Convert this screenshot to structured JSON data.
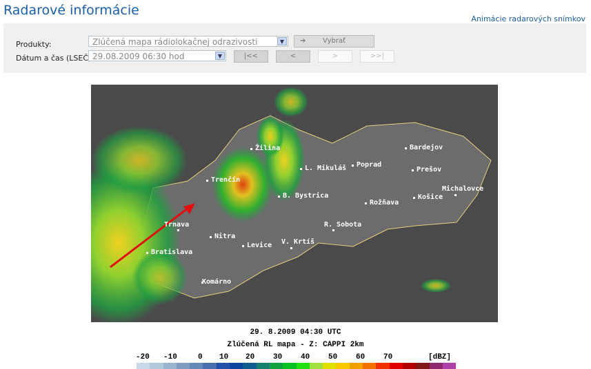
{
  "header": {
    "title": "Radarové informácie",
    "animation_link": "Animácie radarových snímkov"
  },
  "form": {
    "products_label": "Produkty:",
    "products_value": "Zlúčená mapa rádiolokačnej odrazivosti",
    "select_button": "Vybrať",
    "datetime_label": "Dátum a čas (LSEČ):",
    "datetime_value": "29.08.2009 06:30 hod",
    "nav": {
      "first": "|<<",
      "prev": "<",
      "next": ">",
      "last": ">>|"
    }
  },
  "map": {
    "cities": [
      "Žilina",
      "Trenčín",
      "L. Mikuláš",
      "Poprad",
      "Bardejov",
      "Prešov",
      "Michalovce",
      "Košice",
      "Rožňava",
      "B. Bystrica",
      "R. Sobota",
      "Trnava",
      "Nitra",
      "Levice",
      "V. Krtíš",
      "Bratislava",
      "Komárno"
    ],
    "arrow_color": "#e01010"
  },
  "caption": {
    "time": "29. 8.2009 04:30 UTC",
    "product": "Zlúčená RL mapa - Z: CAPPI 2km"
  },
  "legend": {
    "ticks": [
      "-20",
      "-10",
      "0",
      "10",
      "20",
      "30",
      "40",
      "50",
      "60",
      "70"
    ],
    "unit": "[dBZ]",
    "colors": [
      "#c8d8e8",
      "#b0c8dc",
      "#98b4cc",
      "#7c9cc0",
      "#6488b8",
      "#4870b0",
      "#2050a8",
      "#0c44a0",
      "#105c90",
      "#148070",
      "#10a040",
      "#08c020",
      "#20e010",
      "#a0e040",
      "#e0e000",
      "#f8c800",
      "#f0a000",
      "#f07000",
      "#f03000",
      "#e00000",
      "#b00000",
      "#801818",
      "#902870",
      "#b040a8",
      "#d860d8",
      "#f080f0",
      "#f4a0f4"
    ]
  }
}
